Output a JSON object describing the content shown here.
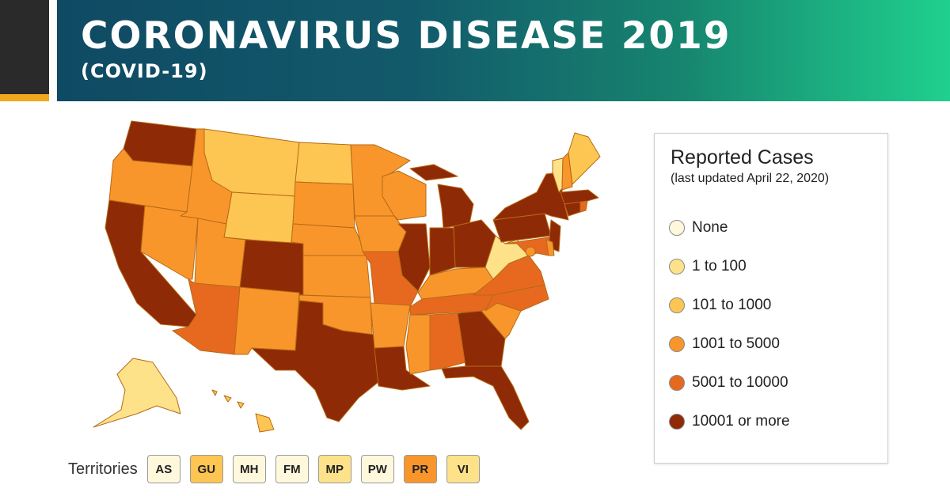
{
  "header": {
    "title": "CORONAVIRUS DISEASE 2019",
    "subtitle": "(COVID-19)"
  },
  "legend": {
    "title": "Reported Cases",
    "subtitle": "(last updated April 22, 2020)",
    "items": [
      {
        "label": "None",
        "color": "#fff8dc"
      },
      {
        "label": "1 to 100",
        "color": "#fde28a"
      },
      {
        "label": "101 to 1000",
        "color": "#fdc552"
      },
      {
        "label": "1001 to 5000",
        "color": "#f9962b"
      },
      {
        "label": "5001 to 10000",
        "color": "#e7691f"
      },
      {
        "label": "10001 or more",
        "color": "#8e2a05"
      }
    ]
  },
  "territories": {
    "label": "Territories",
    "chips": [
      {
        "code": "AS",
        "color": "#fff8dc"
      },
      {
        "code": "GU",
        "color": "#fdc552"
      },
      {
        "code": "MH",
        "color": "#fff8dc"
      },
      {
        "code": "FM",
        "color": "#fff8dc"
      },
      {
        "code": "MP",
        "color": "#fde28a"
      },
      {
        "code": "PW",
        "color": "#fff8dc"
      },
      {
        "code": "PR",
        "color": "#f9962b"
      },
      {
        "code": "VI",
        "color": "#fde28a"
      }
    ]
  },
  "map": {
    "stroke": "#b56a16",
    "states": [
      {
        "id": "wa",
        "color": "#8e2a05"
      },
      {
        "id": "or",
        "color": "#f9962b"
      },
      {
        "id": "ca",
        "color": "#8e2a05"
      },
      {
        "id": "id",
        "color": "#f9962b"
      },
      {
        "id": "nv",
        "color": "#f9962b"
      },
      {
        "id": "mt",
        "color": "#fdc552"
      },
      {
        "id": "wy",
        "color": "#fdc552"
      },
      {
        "id": "ut",
        "color": "#f9962b"
      },
      {
        "id": "az",
        "color": "#e7691f"
      },
      {
        "id": "co",
        "color": "#8e2a05"
      },
      {
        "id": "nm",
        "color": "#f9962b"
      },
      {
        "id": "nd",
        "color": "#fdc552"
      },
      {
        "id": "sd",
        "color": "#f9962b"
      },
      {
        "id": "ne",
        "color": "#f9962b"
      },
      {
        "id": "ks",
        "color": "#f9962b"
      },
      {
        "id": "ok",
        "color": "#f9962b"
      },
      {
        "id": "tx",
        "color": "#8e2a05"
      },
      {
        "id": "mn",
        "color": "#f9962b"
      },
      {
        "id": "ia",
        "color": "#f9962b"
      },
      {
        "id": "mo",
        "color": "#e7691f"
      },
      {
        "id": "ar",
        "color": "#f9962b"
      },
      {
        "id": "la",
        "color": "#8e2a05"
      },
      {
        "id": "wi",
        "color": "#f9962b"
      },
      {
        "id": "il",
        "color": "#8e2a05"
      },
      {
        "id": "mi",
        "color": "#8e2a05"
      },
      {
        "id": "in",
        "color": "#8e2a05"
      },
      {
        "id": "oh",
        "color": "#8e2a05"
      },
      {
        "id": "ky",
        "color": "#f9962b"
      },
      {
        "id": "tn",
        "color": "#e7691f"
      },
      {
        "id": "ms",
        "color": "#f9962b"
      },
      {
        "id": "al",
        "color": "#e7691f"
      },
      {
        "id": "ga",
        "color": "#8e2a05"
      },
      {
        "id": "fl",
        "color": "#8e2a05"
      },
      {
        "id": "sc",
        "color": "#f9962b"
      },
      {
        "id": "nc",
        "color": "#e7691f"
      },
      {
        "id": "va",
        "color": "#e7691f"
      },
      {
        "id": "wv",
        "color": "#fde28a"
      },
      {
        "id": "pa",
        "color": "#8e2a05"
      },
      {
        "id": "ny",
        "color": "#8e2a05"
      },
      {
        "id": "nj",
        "color": "#8e2a05"
      },
      {
        "id": "md",
        "color": "#e7691f"
      },
      {
        "id": "de",
        "color": "#f9962b"
      },
      {
        "id": "dc",
        "color": "#f9962b"
      },
      {
        "id": "ct",
        "color": "#8e2a05"
      },
      {
        "id": "ri",
        "color": "#e7691f"
      },
      {
        "id": "ma",
        "color": "#8e2a05"
      },
      {
        "id": "vt",
        "color": "#fde28a"
      },
      {
        "id": "nh",
        "color": "#f9962b"
      },
      {
        "id": "me",
        "color": "#fdc552"
      },
      {
        "id": "ak",
        "color": "#fde28a"
      },
      {
        "id": "hi",
        "color": "#fdc552"
      }
    ]
  }
}
